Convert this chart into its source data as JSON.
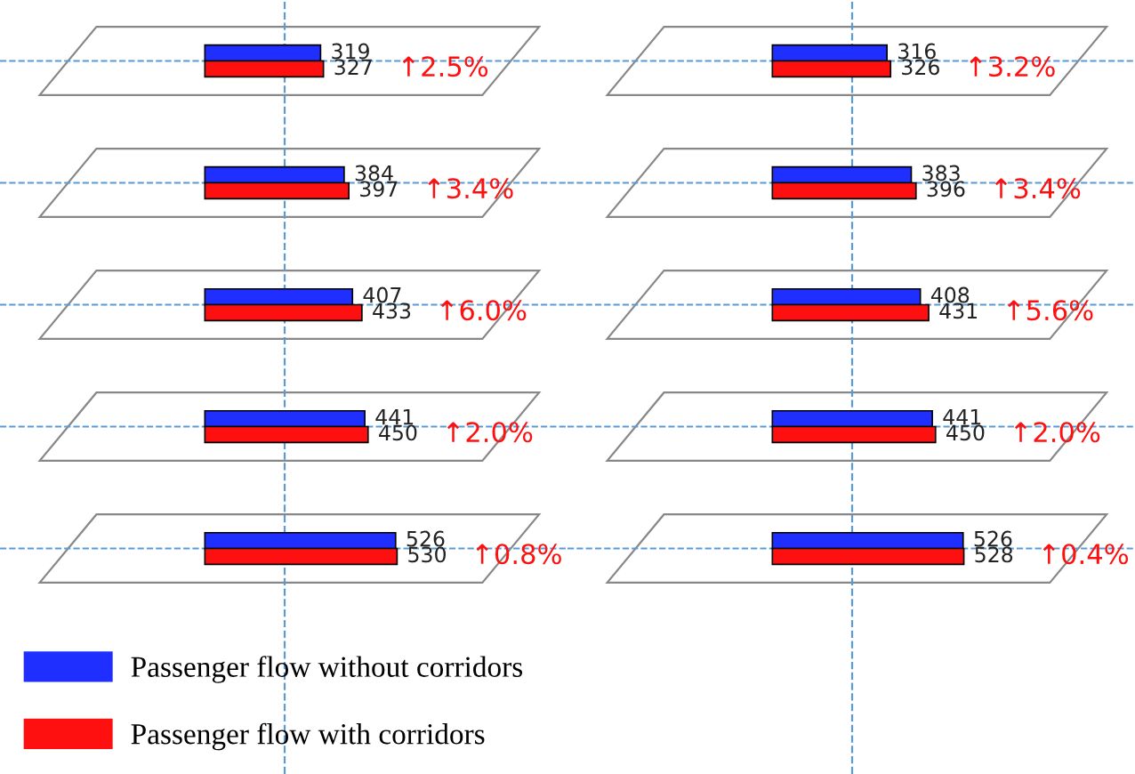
{
  "chart_data": [
    {
      "type": "bar",
      "orientation": "horizontal",
      "categories": [
        null,
        null,
        null,
        null,
        null
      ],
      "xlim": [
        -565,
        1000
      ],
      "tick_labels": false,
      "grid": "y",
      "data_labels": true,
      "legend": "bottom",
      "series": [
        {
          "name": "Passenger flow without corridors",
          "color": "#1f2fff",
          "values": [
            319,
            384,
            407,
            441,
            526
          ]
        },
        {
          "name": "Passenger flow with corridors",
          "color": "#ff1010",
          "values": [
            327,
            397,
            433,
            450,
            530
          ]
        }
      ],
      "ref_lines": [
        {
          "axis": "x",
          "value": 220,
          "color": "#5b9bd5",
          "line_style": "dashed"
        }
      ],
      "annotations": [
        "↑2.5%",
        "↑3.4%",
        "↑6.0%",
        "↑2.0%",
        "↑0.8%"
      ]
    },
    {
      "type": "bar",
      "orientation": "horizontal",
      "categories": [
        null,
        null,
        null,
        null,
        null
      ],
      "xlim": [
        -565,
        1000
      ],
      "tick_labels": false,
      "grid": "y",
      "data_labels": true,
      "series": [
        {
          "color": "#1f2fff",
          "values": [
            316,
            383,
            408,
            441,
            526
          ]
        },
        {
          "color": "#ff1010",
          "values": [
            326,
            396,
            431,
            450,
            528
          ]
        }
      ],
      "ref_lines": [
        {
          "axis": "x",
          "value": 220,
          "color": "#5b9bd5",
          "line_style": "dashed"
        }
      ],
      "annotations": [
        "↑3.2%",
        "↑3.4%",
        "↑5.6%",
        "↑2.0%",
        "↑0.4%"
      ]
    }
  ]
}
